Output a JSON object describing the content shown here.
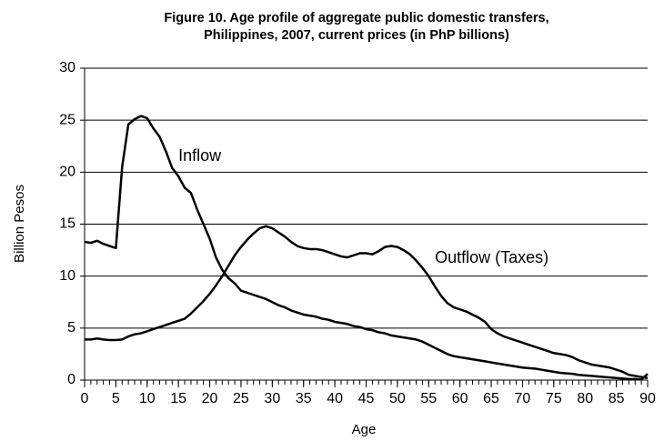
{
  "chart_data": {
    "type": "line",
    "title": [
      "Figure 10. Age profile of aggregate public domestic transfers,",
      "Philippines, 2007, current prices (in PhP billions)"
    ],
    "xlabel": "Age",
    "ylabel": "Billion Pesos",
    "x": [
      0,
      1,
      2,
      3,
      4,
      5,
      6,
      7,
      8,
      9,
      10,
      11,
      12,
      13,
      14,
      15,
      16,
      17,
      18,
      19,
      20,
      21,
      22,
      23,
      24,
      25,
      26,
      27,
      28,
      29,
      30,
      31,
      32,
      33,
      34,
      35,
      36,
      37,
      38,
      39,
      40,
      41,
      42,
      43,
      44,
      45,
      46,
      47,
      48,
      49,
      50,
      51,
      52,
      53,
      54,
      55,
      56,
      57,
      58,
      59,
      60,
      61,
      62,
      63,
      64,
      65,
      66,
      67,
      68,
      69,
      70,
      71,
      72,
      73,
      74,
      75,
      76,
      77,
      78,
      79,
      80,
      81,
      82,
      83,
      84,
      85,
      86,
      87,
      88,
      89,
      90
    ],
    "series": [
      {
        "name": "Inflow",
        "color": "#000000",
        "values": [
          13.3,
          13.2,
          13.4,
          13.1,
          12.9,
          12.7,
          20.5,
          24.6,
          25.1,
          25.4,
          25.2,
          24.2,
          23.4,
          22,
          20.4,
          19.6,
          18.5,
          18,
          16.4,
          15,
          13.6,
          11.8,
          10.6,
          9.8,
          9.3,
          8.6,
          8.4,
          8.2,
          8,
          7.8,
          7.5,
          7.2,
          7,
          6.7,
          6.5,
          6.3,
          6.2,
          6.1,
          5.9,
          5.8,
          5.6,
          5.5,
          5.4,
          5.2,
          5.1,
          4.9,
          4.8,
          4.6,
          4.5,
          4.3,
          4.2,
          4.1,
          4,
          3.9,
          3.7,
          3.4,
          3.1,
          2.8,
          2.5,
          2.3,
          2.2,
          2.1,
          2,
          1.9,
          1.8,
          1.7,
          1.6,
          1.5,
          1.4,
          1.3,
          1.2,
          1.15,
          1.1,
          1,
          0.9,
          0.8,
          0.7,
          0.65,
          0.6,
          0.5,
          0.45,
          0.4,
          0.35,
          0.3,
          0.25,
          0.2,
          0.15,
          0.1,
          0.1,
          0.05,
          0.6
        ]
      },
      {
        "name": "Outflow (Taxes)",
        "color": "#000000",
        "values": [
          3.9,
          3.9,
          4,
          3.9,
          3.85,
          3.85,
          3.9,
          4.2,
          4.4,
          4.5,
          4.7,
          4.9,
          5.1,
          5.3,
          5.5,
          5.7,
          5.9,
          6.4,
          7,
          7.6,
          8.3,
          9.1,
          10,
          11,
          12,
          12.8,
          13.5,
          14.1,
          14.6,
          14.8,
          14.6,
          14.2,
          13.8,
          13.3,
          12.9,
          12.7,
          12.6,
          12.6,
          12.5,
          12.3,
          12.1,
          11.9,
          11.8,
          12,
          12.2,
          12.2,
          12.1,
          12.4,
          12.8,
          12.9,
          12.8,
          12.5,
          12.1,
          11.5,
          10.8,
          10,
          9,
          8.1,
          7.4,
          7,
          6.8,
          6.6,
          6.3,
          6,
          5.6,
          4.9,
          4.5,
          4.2,
          4,
          3.8,
          3.6,
          3.4,
          3.2,
          3,
          2.8,
          2.6,
          2.5,
          2.4,
          2.2,
          1.9,
          1.7,
          1.5,
          1.4,
          1.3,
          1.2,
          1,
          0.8,
          0.5,
          0.4,
          0.3,
          0.2
        ]
      }
    ],
    "xlim": [
      0,
      90
    ],
    "xticks": [
      0,
      5,
      10,
      15,
      20,
      25,
      30,
      35,
      40,
      45,
      50,
      55,
      60,
      65,
      70,
      75,
      80,
      85,
      90
    ],
    "ylim": [
      0,
      30
    ],
    "yticks": [
      0,
      5,
      10,
      15,
      20,
      25,
      30
    ],
    "grid": true
  }
}
